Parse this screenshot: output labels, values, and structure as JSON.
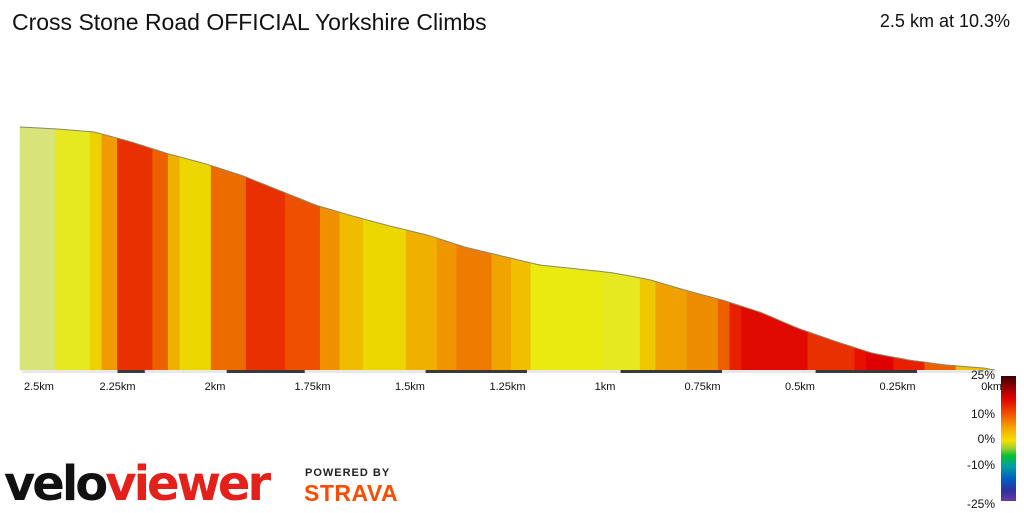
{
  "header": {
    "title": "Cross Stone Road OFFICIAL Yorkshire Climbs",
    "summary": "2.5 km at 10.3%"
  },
  "branding": {
    "logo_velo": "velo",
    "logo_viewer": "viewer",
    "powered_by": "POWERED BY",
    "strava": "STRAVA"
  },
  "gradient_scale": {
    "labels": [
      "25%",
      "10%",
      "0%",
      "-10%",
      "-25%"
    ]
  },
  "chart_data": {
    "type": "area",
    "title": "Cross Stone Road OFFICIAL Yorkshire Climbs",
    "xlabel": "",
    "ylabel": "",
    "x_ticks": [
      "2.5km",
      "2.25km",
      "2km",
      "1.75km",
      "1.5km",
      "1.25km",
      "1km",
      "0.75km",
      "0.5km",
      "0.25km",
      "0km"
    ],
    "x_tick_values": [
      2.5,
      2.25,
      2.0,
      1.75,
      1.5,
      1.25,
      1.0,
      0.75,
      0.5,
      0.25,
      0.0
    ],
    "xlim": [
      2.5,
      0
    ],
    "distance_remaining_km": [
      2.5,
      2.405,
      2.31,
      2.215,
      2.12,
      2.025,
      1.93,
      1.835,
      1.74,
      1.645,
      1.55,
      1.455,
      1.36,
      1.265,
      1.17,
      1.075,
      0.98,
      0.885,
      0.79,
      0.695,
      0.6,
      0.505,
      0.41,
      0.315,
      0.22,
      0.125,
      0.03,
      0.0
    ],
    "relative_elevation_m": [
      245,
      243,
      240,
      230,
      218,
      208,
      196,
      181,
      166,
      155,
      145,
      136,
      124,
      115,
      106,
      102,
      98,
      91,
      80,
      70,
      58,
      42,
      29,
      17,
      10,
      5,
      2,
      0
    ],
    "gradient_pct_scale": [
      -25,
      -10,
      0,
      10,
      25
    ],
    "segments": [
      {
        "from_km": 2.5,
        "to_km": 2.41,
        "color": "#d8e47a"
      },
      {
        "from_km": 2.41,
        "to_km": 2.32,
        "color": "#e6e820"
      },
      {
        "from_km": 2.32,
        "to_km": 2.29,
        "color": "#ecd200"
      },
      {
        "from_km": 2.29,
        "to_km": 2.25,
        "color": "#ee9a00"
      },
      {
        "from_km": 2.25,
        "to_km": 2.16,
        "color": "#e83000"
      },
      {
        "from_km": 2.16,
        "to_km": 2.12,
        "color": "#ec6000"
      },
      {
        "from_km": 2.12,
        "to_km": 2.09,
        "color": "#f0b000"
      },
      {
        "from_km": 2.09,
        "to_km": 2.01,
        "color": "#ecd800"
      },
      {
        "from_km": 2.01,
        "to_km": 1.92,
        "color": "#ec6c00"
      },
      {
        "from_km": 1.92,
        "to_km": 1.82,
        "color": "#e83000"
      },
      {
        "from_km": 1.82,
        "to_km": 1.73,
        "color": "#ec5000"
      },
      {
        "from_km": 1.73,
        "to_km": 1.68,
        "color": "#f09000"
      },
      {
        "from_km": 1.68,
        "to_km": 1.62,
        "color": "#f0bc00"
      },
      {
        "from_km": 1.62,
        "to_km": 1.51,
        "color": "#ecd800"
      },
      {
        "from_km": 1.51,
        "to_km": 1.43,
        "color": "#f0b000"
      },
      {
        "from_km": 1.43,
        "to_km": 1.38,
        "color": "#f09400"
      },
      {
        "from_km": 1.38,
        "to_km": 1.29,
        "color": "#ee7c00"
      },
      {
        "from_km": 1.29,
        "to_km": 1.24,
        "color": "#f0a400"
      },
      {
        "from_km": 1.24,
        "to_km": 1.19,
        "color": "#f0c000"
      },
      {
        "from_km": 1.19,
        "to_km": 1.01,
        "color": "#eaea10"
      },
      {
        "from_km": 1.01,
        "to_km": 0.91,
        "color": "#e6e820"
      },
      {
        "from_km": 0.91,
        "to_km": 0.87,
        "color": "#f0c800"
      },
      {
        "from_km": 0.87,
        "to_km": 0.79,
        "color": "#f0a000"
      },
      {
        "from_km": 0.79,
        "to_km": 0.71,
        "color": "#ee8c00"
      },
      {
        "from_km": 0.71,
        "to_km": 0.68,
        "color": "#ec6000"
      },
      {
        "from_km": 0.68,
        "to_km": 0.65,
        "color": "#e82000"
      },
      {
        "from_km": 0.65,
        "to_km": 0.48,
        "color": "#e00a00"
      },
      {
        "from_km": 0.48,
        "to_km": 0.36,
        "color": "#e83000"
      },
      {
        "from_km": 0.36,
        "to_km": 0.33,
        "color": "#e81000"
      },
      {
        "from_km": 0.33,
        "to_km": 0.26,
        "color": "#e00000"
      },
      {
        "from_km": 0.26,
        "to_km": 0.18,
        "color": "#e82000"
      },
      {
        "from_km": 0.18,
        "to_km": 0.1,
        "color": "#ec6000"
      },
      {
        "from_km": 0.1,
        "to_km": 0.0,
        "color": "#f0c000"
      }
    ],
    "axis_dark_bands": [
      [
        2.25,
        2.18
      ],
      [
        1.97,
        1.77
      ],
      [
        1.46,
        1.2
      ],
      [
        0.96,
        0.7
      ],
      [
        0.46,
        0.2
      ]
    ],
    "grid": false,
    "legend": "bottom-right color scale"
  }
}
